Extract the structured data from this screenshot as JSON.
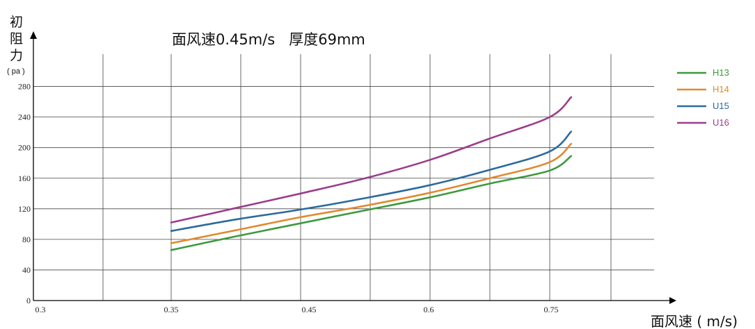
{
  "chart_data": {
    "type": "line",
    "title": "面风速0.45m/s   厚度69mm",
    "ylabel": {
      "chars": [
        "初",
        "阻",
        "力"
      ],
      "unit": "( pa )"
    },
    "xlabel": "面风速 ( m/s)",
    "x_ticks": [
      "0.3",
      "0.35",
      "0.45",
      "0.6",
      "0.75"
    ],
    "y_ticks": [
      0,
      40,
      80,
      120,
      160,
      200,
      240,
      280
    ],
    "ylim": [
      0,
      320
    ],
    "grid": true,
    "legend_position": "top-right",
    "series": [
      {
        "name": "H13",
        "color": "#3c9a3c",
        "points": [
          [
            1.0,
            66
          ],
          [
            1.5,
            84
          ],
          [
            2.0,
            101
          ],
          [
            2.5,
            118
          ],
          [
            3.0,
            135
          ],
          [
            3.5,
            153
          ],
          [
            4.0,
            170
          ],
          [
            4.35,
            189
          ]
        ]
      },
      {
        "name": "H14",
        "color": "#e08a2e",
        "points": [
          [
            1.0,
            75
          ],
          [
            1.5,
            92
          ],
          [
            2.0,
            109
          ],
          [
            2.5,
            124
          ],
          [
            3.0,
            141
          ],
          [
            3.5,
            160
          ],
          [
            4.0,
            181
          ],
          [
            4.35,
            205
          ]
        ]
      },
      {
        "name": "U15",
        "color": "#2a6a9e",
        "points": [
          [
            1.0,
            91
          ],
          [
            1.5,
            106
          ],
          [
            2.0,
            119
          ],
          [
            2.5,
            134
          ],
          [
            3.0,
            151
          ],
          [
            3.5,
            171
          ],
          [
            4.0,
            195
          ],
          [
            4.35,
            221
          ]
        ]
      },
      {
        "name": "U16",
        "color": "#9b3c8a",
        "points": [
          [
            1.0,
            102
          ],
          [
            1.5,
            121
          ],
          [
            2.0,
            140
          ],
          [
            2.5,
            160
          ],
          [
            3.0,
            184
          ],
          [
            3.5,
            212
          ],
          [
            4.0,
            240
          ],
          [
            4.35,
            266
          ]
        ]
      }
    ]
  }
}
